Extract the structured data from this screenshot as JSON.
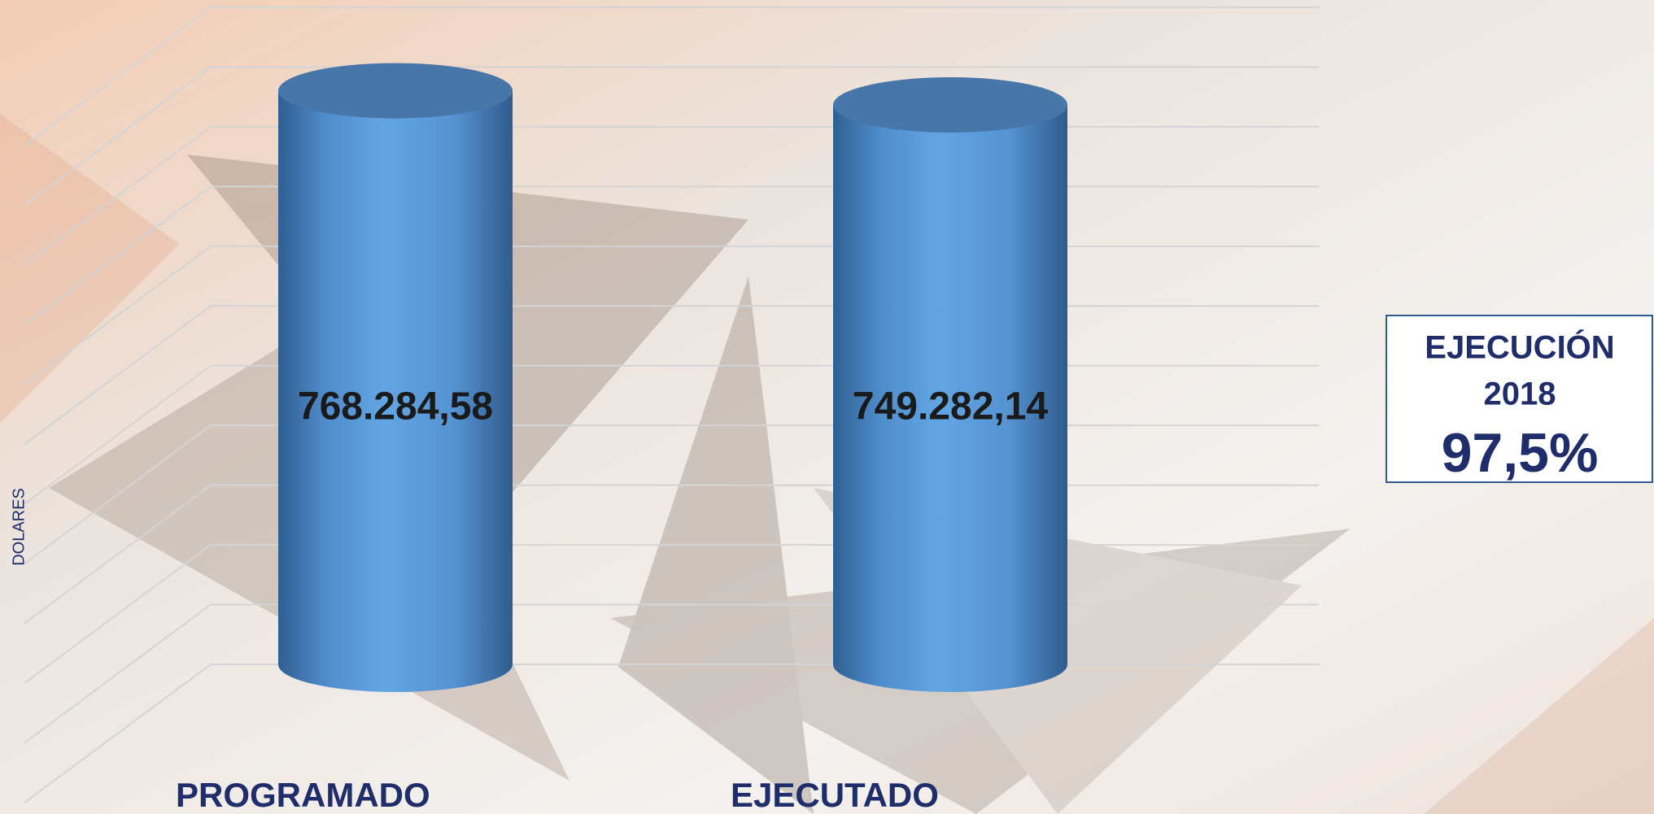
{
  "chart_data": {
    "type": "bar",
    "y_label": "DOLARES",
    "categories": [
      "PROGRAMADO",
      "EJECUTADO"
    ],
    "values": [
      768284.58,
      749282.14
    ],
    "value_labels": [
      "768.284,58",
      "749.282,14"
    ],
    "color": "#5b9bd5",
    "ylim": [
      0,
      880000
    ],
    "yticks": [
      0,
      80000,
      160000,
      240000,
      320000,
      400000,
      480000,
      560000,
      640000,
      720000,
      800000,
      880000
    ],
    "grid": true,
    "annotation": {
      "title": "EJECUCIÓN",
      "year": "2018",
      "value": "97,5%"
    }
  }
}
